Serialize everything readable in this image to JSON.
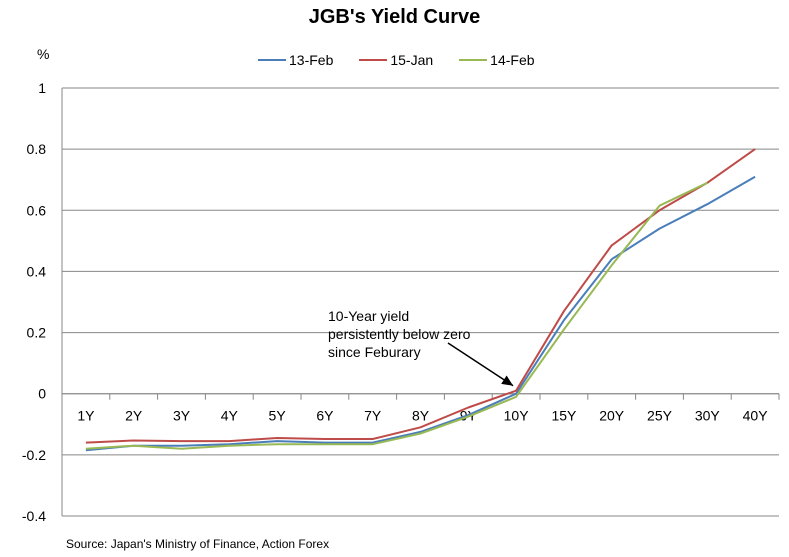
{
  "chart_data": {
    "type": "line",
    "title": "JGB's Yield Curve",
    "ylabel": "%",
    "xlabel": "",
    "categories": [
      "1Y",
      "2Y",
      "3Y",
      "4Y",
      "5Y",
      "6Y",
      "7Y",
      "8Y",
      "9Y",
      "10Y",
      "15Y",
      "20Y",
      "25Y",
      "30Y",
      "40Y"
    ],
    "ylim": [
      -0.4,
      1
    ],
    "yticks": [
      "1",
      "0.8",
      "0.6",
      "0.4",
      "0.2",
      "0",
      "-0.2",
      "-0.4"
    ],
    "ytick_values": [
      1,
      0.8,
      0.6,
      0.4,
      0.2,
      0,
      -0.2,
      -0.4
    ],
    "series": [
      {
        "name": "13-Feb",
        "color": "#4a7ebb",
        "values": [
          -0.185,
          -0.17,
          -0.17,
          -0.165,
          -0.155,
          -0.16,
          -0.16,
          -0.125,
          -0.07,
          0.0,
          0.24,
          0.44,
          0.54,
          0.62,
          0.71
        ]
      },
      {
        "name": "15-Jan",
        "color": "#be4b48",
        "values": [
          -0.16,
          -0.153,
          -0.155,
          -0.155,
          -0.145,
          -0.148,
          -0.148,
          -0.11,
          -0.045,
          0.01,
          0.27,
          0.485,
          0.6,
          0.69,
          0.8
        ]
      },
      {
        "name": "14-Feb",
        "color": "#98b954",
        "values": [
          -0.18,
          -0.17,
          -0.18,
          -0.17,
          -0.165,
          -0.165,
          -0.165,
          -0.13,
          -0.075,
          -0.01,
          0.21,
          0.42,
          0.615,
          0.69,
          null
        ]
      }
    ],
    "grid": "horizontal",
    "legend_position": "top",
    "annotation": {
      "text": [
        "10-Year yield",
        "persistently below zero",
        "since Feburary"
      ],
      "target_category": "10Y"
    },
    "source": "Source: Japan's Ministry of Finance, Action Forex"
  }
}
